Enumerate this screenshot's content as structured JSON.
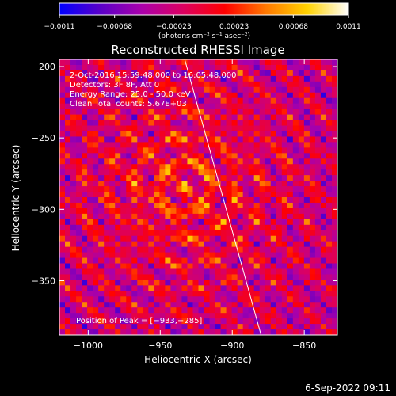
{
  "chart_data": {
    "type": "heatmap",
    "title": "Reconstructed RHESSI Image",
    "xlabel": "Heliocentric X (arcsec)",
    "ylabel": "Heliocentric Y (arcsec)",
    "xlim": [
      -1020,
      -827
    ],
    "ylim": [
      -388,
      -195
    ],
    "x_ticks": [
      -1000,
      -950,
      -900,
      -850
    ],
    "x_tick_labels": [
      "−1000",
      "−950",
      "−900",
      "−850"
    ],
    "y_ticks": [
      -200,
      -250,
      -300,
      -350
    ],
    "y_tick_labels": [
      "−200",
      "−250",
      "−300",
      "−350"
    ],
    "colorbar": {
      "min": -0.0011,
      "max": 0.0011,
      "ticks": [
        -0.0011,
        -0.00068,
        -0.00023,
        0.00023,
        0.00068,
        0.0011
      ],
      "tick_labels": [
        "−0.0011",
        "−0.00068",
        "−0.00023",
        "0.00023",
        "0.00068",
        "0.0011"
      ],
      "units_label": "(photons cm⁻² s⁻¹ asec⁻²)",
      "colors": [
        "#0000ff",
        "#5a00c8",
        "#aa00aa",
        "#dc0060",
        "#ff0000",
        "#ff7800",
        "#ffd200",
        "#ffffff"
      ]
    },
    "annotations": [
      "2-Oct-2016 15:59:48.000 to 16:05:48.000",
      "Detectors: 3F 8F, Att 0",
      "Energy Range: 25.0 - 50.0 keV",
      "Clean    Total counts: 5.67E+03"
    ],
    "peak_label": "Position of Peak = [−933,−285]",
    "peak_position": [
      -933,
      -285
    ],
    "limb_line": [
      [
        -933,
        -195
      ],
      [
        -880,
        -388
      ]
    ],
    "grid": false
  },
  "footer": {
    "date": "6-Sep-2022 09:11"
  }
}
